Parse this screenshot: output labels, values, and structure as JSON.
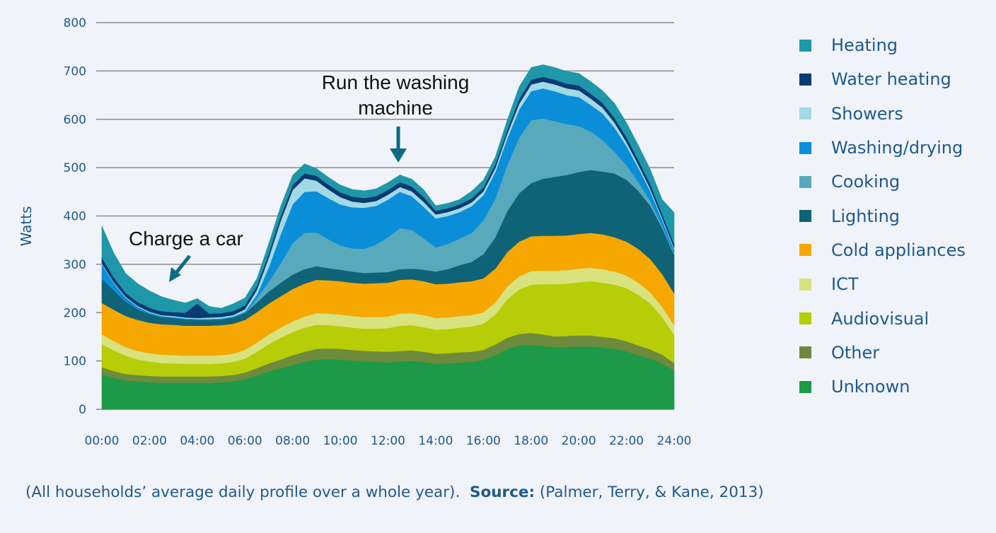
{
  "chart_data": {
    "type": "area",
    "stacked": true,
    "ylabel": "Watts",
    "ylim": [
      0,
      800
    ],
    "y_ticks": [
      "0",
      "100",
      "200",
      "300",
      "400",
      "500",
      "600",
      "700",
      "800"
    ],
    "x_ticks": [
      "00:00",
      "02:00",
      "04:00",
      "06:00",
      "08:00",
      "10:00",
      "12:00",
      "14:00",
      "16:00",
      "18:00",
      "20:00",
      "22:00",
      "24:00"
    ],
    "xlim_hours": [
      0,
      24
    ],
    "grid": "horizontal",
    "legend_position": "right",
    "x_hours": [
      0,
      0.5,
      1,
      1.5,
      2,
      2.5,
      3,
      3.5,
      4,
      4.5,
      5,
      5.5,
      6,
      6.5,
      7,
      7.5,
      8,
      8.5,
      9,
      9.5,
      10,
      10.5,
      11,
      11.5,
      12,
      12.5,
      13,
      13.5,
      14,
      14.5,
      15,
      15.5,
      16,
      16.5,
      17,
      17.5,
      18,
      18.5,
      19,
      19.5,
      20,
      20.5,
      21,
      21.5,
      22,
      22.5,
      23,
      23.5,
      24
    ],
    "series": [
      {
        "name": "Unknown",
        "color": "#1c9a48",
        "values": [
          72,
          65,
          60,
          58,
          56,
          55,
          55,
          55,
          55,
          55,
          56,
          58,
          62,
          70,
          78,
          85,
          92,
          98,
          103,
          104,
          103,
          101,
          99,
          98,
          97,
          99,
          100,
          98,
          94,
          95,
          97,
          98,
          102,
          112,
          125,
          132,
          134,
          131,
          128,
          129,
          130,
          130,
          128,
          125,
          120,
          112,
          105,
          95,
          80
        ]
      },
      {
        "name": "Other",
        "color": "#6e8a3c",
        "values": [
          15,
          14,
          13,
          13,
          13,
          13,
          13,
          13,
          13,
          13,
          13,
          13,
          14,
          15,
          17,
          18,
          20,
          21,
          22,
          22,
          22,
          22,
          22,
          22,
          22,
          22,
          22,
          21,
          21,
          21,
          21,
          21,
          21,
          22,
          23,
          24,
          24,
          24,
          23,
          23,
          23,
          23,
          22,
          22,
          21,
          20,
          19,
          18,
          16
        ]
      },
      {
        "name": "Audiovisual",
        "color": "#b7cd07",
        "values": [
          48,
          43,
          38,
          32,
          30,
          28,
          27,
          26,
          26,
          26,
          26,
          27,
          29,
          34,
          40,
          45,
          48,
          50,
          50,
          48,
          47,
          46,
          46,
          47,
          49,
          52,
          52,
          51,
          50,
          50,
          51,
          52,
          54,
          62,
          80,
          92,
          100,
          104,
          108,
          108,
          110,
          112,
          112,
          111,
          110,
          105,
          95,
          78,
          58
        ]
      },
      {
        "name": "ICT",
        "color": "#d8e27e",
        "values": [
          20,
          19,
          18,
          18,
          17,
          17,
          17,
          17,
          17,
          17,
          17,
          17,
          18,
          19,
          20,
          21,
          22,
          23,
          24,
          24,
          24,
          24,
          24,
          24,
          24,
          25,
          25,
          25,
          24,
          24,
          24,
          24,
          24,
          25,
          26,
          27,
          28,
          28,
          28,
          28,
          28,
          28,
          28,
          27,
          26,
          25,
          23,
          21,
          20
        ]
      },
      {
        "name": "Cold appliances",
        "color": "#f6a800",
        "values": [
          65,
          65,
          64,
          64,
          63,
          63,
          63,
          62,
          62,
          62,
          62,
          62,
          62,
          63,
          64,
          65,
          67,
          68,
          69,
          69,
          69,
          69,
          69,
          70,
          70,
          70,
          70,
          70,
          70,
          70,
          70,
          70,
          70,
          70,
          71,
          72,
          72,
          72,
          72,
          72,
          72,
          72,
          72,
          71,
          70,
          70,
          69,
          68,
          66
        ]
      },
      {
        "name": "Lighting",
        "color": "#0f6377",
        "values": [
          50,
          40,
          30,
          22,
          18,
          15,
          14,
          13,
          12,
          12,
          12,
          13,
          14,
          20,
          25,
          28,
          30,
          30,
          28,
          25,
          24,
          23,
          22,
          22,
          22,
          22,
          22,
          24,
          26,
          30,
          35,
          40,
          50,
          65,
          85,
          100,
          110,
          118,
          122,
          125,
          128,
          130,
          130,
          132,
          128,
          120,
          110,
          95,
          80
        ]
      },
      {
        "name": "Cooking",
        "color": "#57a9bb",
        "values": [
          0,
          0,
          0,
          0,
          0,
          0,
          0,
          0,
          0,
          0,
          0,
          0,
          0,
          8,
          20,
          40,
          65,
          75,
          70,
          60,
          50,
          48,
          50,
          58,
          72,
          85,
          80,
          65,
          50,
          52,
          55,
          60,
          70,
          80,
          95,
          115,
          130,
          125,
          115,
          105,
          95,
          80,
          65,
          45,
          30,
          18,
          10,
          5,
          3
        ]
      },
      {
        "name": "Washing/drying",
        "color": "#0a8ed8",
        "values": [
          30,
          15,
          8,
          5,
          3,
          2,
          2,
          2,
          2,
          2,
          2,
          2,
          3,
          8,
          30,
          60,
          80,
          85,
          85,
          85,
          85,
          85,
          85,
          80,
          78,
          75,
          70,
          65,
          60,
          58,
          55,
          55,
          52,
          55,
          55,
          58,
          60,
          62,
          62,
          60,
          60,
          55,
          55,
          50,
          40,
          30,
          20,
          12,
          8
        ]
      },
      {
        "name": "Showers",
        "color": "#a2d9e5",
        "values": [
          2,
          2,
          2,
          2,
          2,
          2,
          2,
          2,
          2,
          3,
          3,
          3,
          5,
          10,
          20,
          28,
          30,
          28,
          22,
          18,
          15,
          12,
          10,
          10,
          10,
          10,
          10,
          10,
          8,
          8,
          8,
          8,
          8,
          8,
          10,
          12,
          14,
          14,
          14,
          14,
          14,
          13,
          12,
          10,
          8,
          6,
          5,
          4,
          3
        ]
      },
      {
        "name": "Water heating",
        "color": "#0a3a72",
        "values": [
          12,
          10,
          8,
          8,
          8,
          8,
          8,
          10,
          30,
          8,
          8,
          8,
          8,
          8,
          9,
          10,
          10,
          10,
          10,
          10,
          10,
          10,
          10,
          10,
          10,
          10,
          10,
          10,
          8,
          8,
          8,
          8,
          8,
          8,
          8,
          10,
          10,
          10,
          10,
          10,
          10,
          10,
          10,
          10,
          10,
          10,
          10,
          8,
          8
        ]
      },
      {
        "name": "Heating",
        "color": "#1e97a9",
        "values": [
          65,
          50,
          40,
          38,
          35,
          30,
          25,
          20,
          10,
          15,
          10,
          15,
          15,
          15,
          20,
          20,
          20,
          20,
          15,
          15,
          15,
          15,
          15,
          15,
          15,
          15,
          15,
          15,
          10,
          10,
          10,
          15,
          15,
          15,
          20,
          25,
          25,
          25,
          25,
          25,
          25,
          25,
          25,
          30,
          30,
          30,
          30,
          30,
          65
        ]
      }
    ]
  },
  "annotations": {
    "charge_car": "Charge a car",
    "washing_line1": "Run the washing",
    "washing_line2": "machine"
  },
  "caption": {
    "prefix": "(All households’ average daily profile over a whole year).",
    "source_label": "Source:",
    "source_text": "(Palmer, Terry, & Kane, 2013)"
  },
  "colors": {
    "background": "#f1f3fa",
    "text": "#1d5a8e",
    "gridline": "#8a8a8a",
    "arrow": "#0e6a85"
  }
}
